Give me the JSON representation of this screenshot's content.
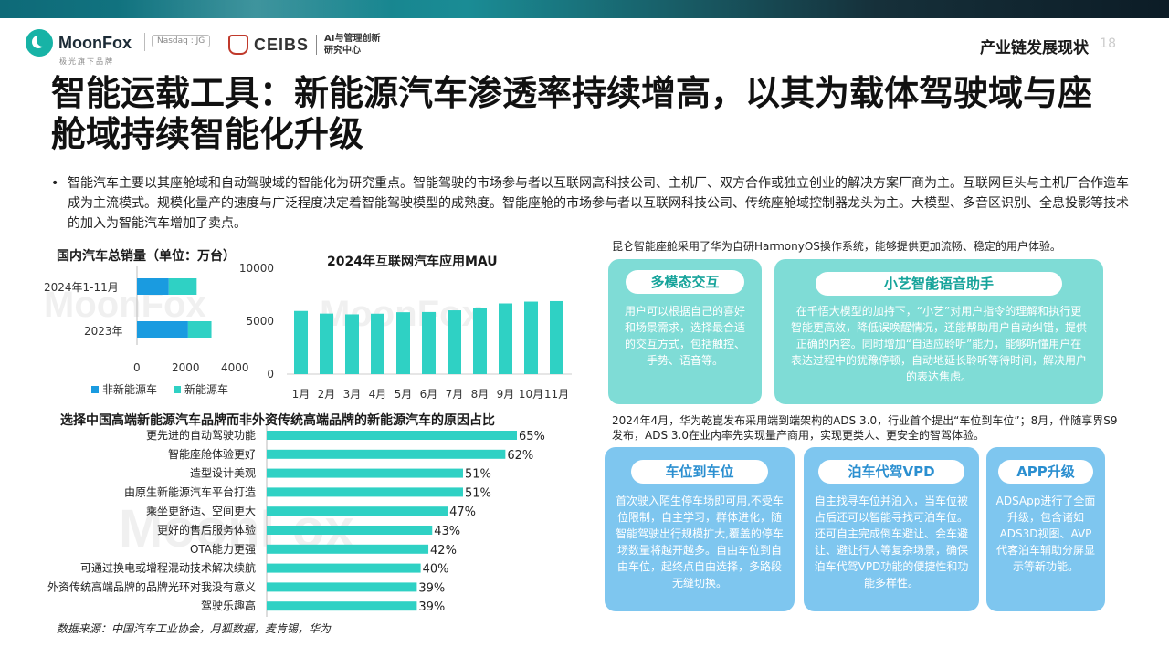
{
  "header": {
    "brand": "MoonFox",
    "brand_sub": "极光旗下品牌",
    "ticker": "Nasdaq : JG",
    "partner": "CEIBS",
    "partner_sub": "AI与管理创新 研究中心",
    "section": "产业链发展现状",
    "page_number": "18"
  },
  "title": "智能运载工具：新能源汽车渗透率持续增高，以其为载体驾驶域与座舱域持续智能化升级",
  "bullet_text": "智能汽车主要以其座舱域和自动驾驶域的智能化为研究重点。智能驾驶的市场参与者以互联网高科技公司、主机厂、双方合作或独立创业的解决方案厂商为主。互联网巨头与主机厂合作造车成为主流模式。规模化量产的速度与广泛程度决定着智能驾驶模型的成熟度。智能座舱的市场参与者以互联网科技公司、传统座舱域控制器龙头为主。大模型、多音区识别、全息投影等技术的加入为智能汽车增加了卖点。",
  "watermark": "MoonFox",
  "chart_data": [
    {
      "type": "bar",
      "orientation": "horizontal",
      "stacked": true,
      "title": "国内汽车总销量（单位：万台）",
      "categories": [
        "2024年1-11月",
        "2023年"
      ],
      "series": [
        {
          "name": "非新能源车",
          "values": [
            1290,
            2070
          ],
          "color": "#1a9be0"
        },
        {
          "name": "新能源车",
          "values": [
            1130,
            950
          ],
          "color": "#2fd1c4"
        }
      ],
      "xlim": [
        0,
        4000
      ],
      "xticks": [
        "0",
        "2000",
        "4000"
      ],
      "legend": "bottom"
    },
    {
      "type": "bar",
      "title": "2024年互联网汽车应用MAU",
      "categories": [
        "1月",
        "2月",
        "3月",
        "4月",
        "5月",
        "6月",
        "7月",
        "8月",
        "9月",
        "10月",
        "11月"
      ],
      "values": [
        5970,
        5720,
        5650,
        5710,
        5850,
        5870,
        6030,
        6280,
        6680,
        6850,
        6900
      ],
      "color": "#2fd1c4",
      "ylim": [
        0,
        10000
      ],
      "yticks": [
        "0",
        "5000",
        "10000"
      ]
    },
    {
      "type": "bar",
      "orientation": "horizontal",
      "title": "选择中国高端新能源汽车品牌而非外资传统高端品牌的新能源汽车的原因占比",
      "categories": [
        "更先进的自动驾驶功能",
        "智能座舱体验更好",
        "造型设计美观",
        "由原生新能源汽车平台打造",
        "乘坐更舒适、空间更大",
        "更好的售后服务体验",
        "OTA能力更强",
        "可通过换电或增程混动技术解决续航",
        "外资传统高端品牌的品牌光环对我没有意义",
        "驾驶乐趣高"
      ],
      "values": [
        65,
        62,
        51,
        51,
        47,
        43,
        42,
        40,
        39,
        39
      ],
      "labels": [
        "65%",
        "62%",
        "51%",
        "51%",
        "47%",
        "43%",
        "42%",
        "40%",
        "39%",
        "39%"
      ],
      "color": "#2fd1c4",
      "xlim": [
        0,
        70
      ]
    }
  ],
  "source": "数据来源：中国汽车工业协会，月狐数据，麦肯锡，华为",
  "cockpit_note": "昆仑智能座舱采用了华为自研HarmonyOS操作系统，能够提供更加流畅、稳定的用户体验。",
  "cards_top": [
    {
      "title": "多模态交互",
      "text": "用户可以根据自己的喜好和场景需求，选择最合适的交互方式，包括触控、手势、语音等。"
    },
    {
      "title": "小艺智能语音助手",
      "text": "在千悟大模型的加持下，“小艺”对用户指令的理解和执行更智能更高效，降低误唤醒情况，还能帮助用户自动纠错，提供正确的内容。同时增加“自适应聆听”能力，能够听懂用户在表达过程中的犹豫停顿，自动地延长聆听等待时间，解决用户的表达焦虑。"
    }
  ],
  "ads_note": "2024年4月，华为乾崑发布采用端到端架构的ADS 3.0，行业首个提出“车位到车位”；8月，伴随享界S9发布，ADS 3.0在业内率先实现量产商用，实现更类人、更安全的智驾体验。",
  "cards_bottom": [
    {
      "title": "车位到车位",
      "text": "首次驶入陌生停车场即可用,不受车位限制，自主学习，群体进化，随智能驾驶出行规模扩大,覆盖的停车场数量将越开越多。自由车位到自由车位，起终点自由选择，多路段无缝切换。"
    },
    {
      "title": "泊车代驾VPD",
      "text": "自主找寻车位并泊入，当车位被占后还可以智能寻找可泊车位。还可自主完成倒车避让、会车避让、避让行人等复杂场景，确保泊车代驾VPD功能的便捷性和功能多样性。"
    },
    {
      "title": "APP升级",
      "text": "ADSApp进行了全面升级，包含诸如ADS3D视图、AVP代客泊车辅助分屏显示等新功能。"
    }
  ]
}
